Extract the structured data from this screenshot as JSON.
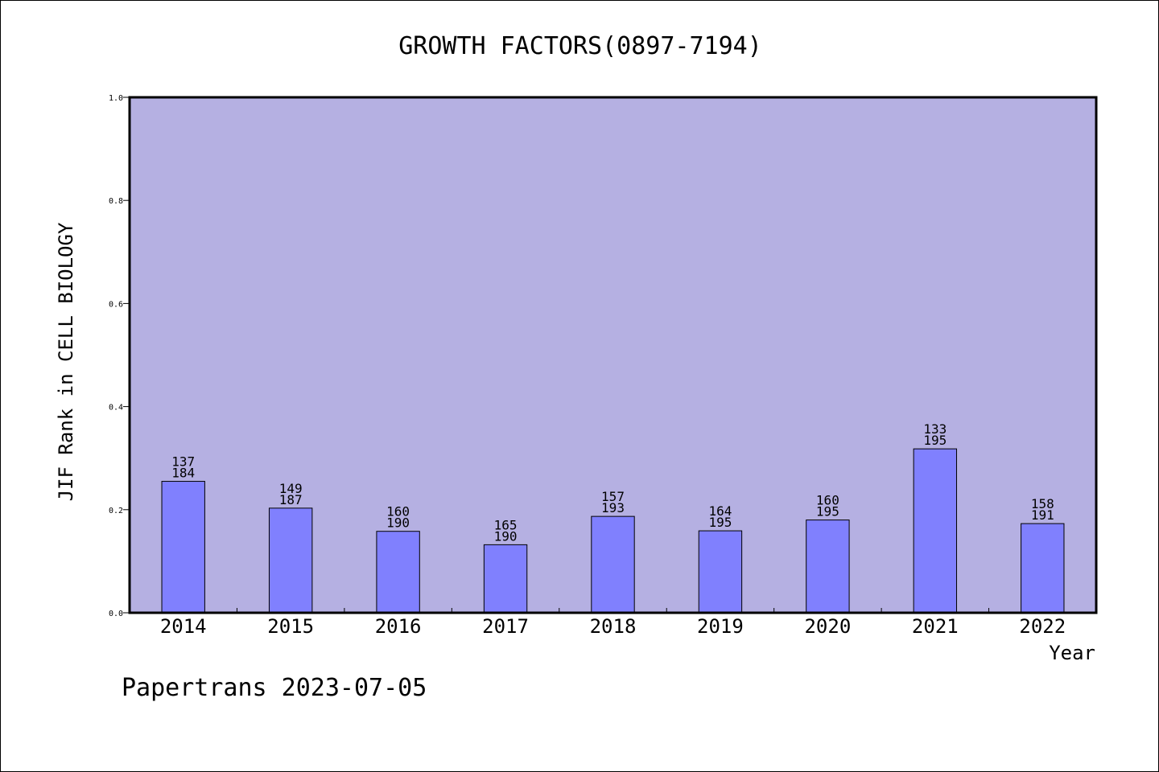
{
  "chart_data": {
    "type": "bar",
    "title": "GROWTH FACTORS(0897-7194)",
    "xlabel": "Year",
    "ylabel": "JIF Rank in CELL BIOLOGY",
    "ylim": [
      0,
      1
    ],
    "yticks": [
      "0.0",
      "0.2",
      "0.4",
      "0.6",
      "0.8",
      "1.0"
    ],
    "categories": [
      "2014",
      "2015",
      "2016",
      "2017",
      "2018",
      "2019",
      "2020",
      "2021",
      "2022"
    ],
    "values": [
      0.255,
      0.203,
      0.158,
      0.132,
      0.187,
      0.159,
      0.18,
      0.318,
      0.173
    ],
    "ranks": [
      "137",
      "149",
      "160",
      "165",
      "157",
      "164",
      "160",
      "133",
      "158"
    ],
    "totals": [
      "184",
      "187",
      "190",
      "190",
      "193",
      "195",
      "195",
      "195",
      "191"
    ],
    "plot_background": "#b5b0e2",
    "bar_color": "#8080fe",
    "grid": false
  },
  "footer": "Papertrans 2023-07-05"
}
